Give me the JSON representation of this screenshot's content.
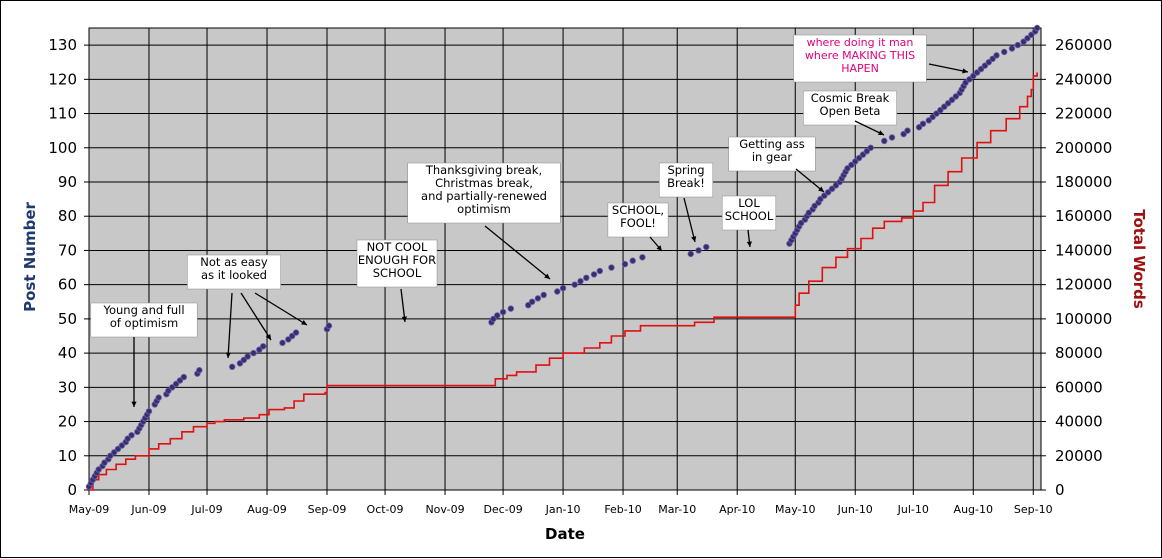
{
  "chart_data": {
    "type": "line",
    "xlabel": "Date",
    "ylabel_left": "Post Number",
    "ylabel_right": "Total Words",
    "xlim": [
      "2009-05-01",
      "2010-09-05"
    ],
    "ylim_left": [
      0,
      135
    ],
    "ylim_right": [
      0,
      270000
    ],
    "grid": true,
    "x_ticks": [
      "May-09",
      "Jun-09",
      "Jul-09",
      "Aug-09",
      "Sep-09",
      "Oct-09",
      "Nov-09",
      "Dec-09",
      "Jan-10",
      "Feb-10",
      "Mar-10",
      "Apr-10",
      "May-10",
      "Jun-10",
      "Jul-10",
      "Aug-10",
      "Sep-10"
    ],
    "y_ticks_left": [
      0,
      10,
      20,
      30,
      40,
      50,
      60,
      70,
      80,
      90,
      100,
      110,
      120,
      130
    ],
    "y_ticks_right": [
      0,
      20000,
      40000,
      60000,
      80000,
      100000,
      120000,
      140000,
      160000,
      180000,
      200000,
      220000,
      240000,
      260000
    ],
    "colors": {
      "posts": "#3a2d6e",
      "words": "#e01010",
      "plot_bg": "#c8c8c8",
      "grid": "#000000",
      "left_title": "#1f3a6e",
      "right_title": "#a01010",
      "pink": "#e0007a"
    },
    "series": [
      {
        "name": "Post Number",
        "style": "dots",
        "axis": "left",
        "points": [
          [
            "2009-05-01",
            1
          ],
          [
            "2009-05-02",
            2
          ],
          [
            "2009-05-03",
            3
          ],
          [
            "2009-05-04",
            4
          ],
          [
            "2009-05-05",
            5
          ],
          [
            "2009-05-06",
            6
          ],
          [
            "2009-05-08",
            7
          ],
          [
            "2009-05-09",
            8
          ],
          [
            "2009-05-11",
            9
          ],
          [
            "2009-05-12",
            10
          ],
          [
            "2009-05-14",
            11
          ],
          [
            "2009-05-16",
            12
          ],
          [
            "2009-05-18",
            13
          ],
          [
            "2009-05-20",
            14
          ],
          [
            "2009-05-21",
            15
          ],
          [
            "2009-05-23",
            16
          ],
          [
            "2009-05-26",
            17
          ],
          [
            "2009-05-27",
            18
          ],
          [
            "2009-05-28",
            19
          ],
          [
            "2009-05-29",
            20
          ],
          [
            "2009-05-30",
            21
          ],
          [
            "2009-05-31",
            22
          ],
          [
            "2009-06-01",
            23
          ],
          [
            "2009-06-04",
            25
          ],
          [
            "2009-06-05",
            26
          ],
          [
            "2009-06-06",
            27
          ],
          [
            "2009-06-10",
            28
          ],
          [
            "2009-06-11",
            29
          ],
          [
            "2009-06-13",
            30
          ],
          [
            "2009-06-15",
            31
          ],
          [
            "2009-06-17",
            32
          ],
          [
            "2009-06-19",
            33
          ],
          [
            "2009-06-26",
            34
          ],
          [
            "2009-06-27",
            35
          ],
          [
            "2009-07-14",
            36
          ],
          [
            "2009-07-18",
            37
          ],
          [
            "2009-07-20",
            38
          ],
          [
            "2009-07-22",
            39
          ],
          [
            "2009-07-25",
            40
          ],
          [
            "2009-07-28",
            41
          ],
          [
            "2009-07-30",
            42
          ],
          [
            "2009-08-09",
            43
          ],
          [
            "2009-08-12",
            44
          ],
          [
            "2009-08-14",
            45
          ],
          [
            "2009-08-16",
            46
          ],
          [
            "2009-09-01",
            47
          ],
          [
            "2009-09-02",
            48
          ],
          [
            "2009-11-25",
            49
          ],
          [
            "2009-11-26",
            50
          ],
          [
            "2009-11-28",
            51
          ],
          [
            "2009-12-01",
            52
          ],
          [
            "2009-12-05",
            53
          ],
          [
            "2009-12-14",
            54
          ],
          [
            "2009-12-16",
            55
          ],
          [
            "2009-12-19",
            56
          ],
          [
            "2009-12-22",
            57
          ],
          [
            "2009-12-29",
            58
          ],
          [
            "2010-01-01",
            59
          ],
          [
            "2010-01-07",
            60
          ],
          [
            "2010-01-10",
            61
          ],
          [
            "2010-01-13",
            62
          ],
          [
            "2010-01-17",
            63
          ],
          [
            "2010-01-20",
            64
          ],
          [
            "2010-01-26",
            65
          ],
          [
            "2010-02-02",
            66
          ],
          [
            "2010-02-06",
            67
          ],
          [
            "2010-02-11",
            68
          ],
          [
            "2010-03-08",
            69
          ],
          [
            "2010-03-12",
            70
          ],
          [
            "2010-03-16",
            71
          ],
          [
            "2010-04-28",
            72
          ],
          [
            "2010-04-29",
            73
          ],
          [
            "2010-04-30",
            74
          ],
          [
            "2010-05-01",
            75
          ],
          [
            "2010-05-02",
            76
          ],
          [
            "2010-05-03",
            77
          ],
          [
            "2010-05-04",
            78
          ],
          [
            "2010-05-06",
            79
          ],
          [
            "2010-05-07",
            80
          ],
          [
            "2010-05-08",
            81
          ],
          [
            "2010-05-10",
            82
          ],
          [
            "2010-05-11",
            83
          ],
          [
            "2010-05-13",
            84
          ],
          [
            "2010-05-14",
            85
          ],
          [
            "2010-05-16",
            86
          ],
          [
            "2010-05-18",
            87
          ],
          [
            "2010-05-20",
            88
          ],
          [
            "2010-05-22",
            89
          ],
          [
            "2010-05-24",
            90
          ],
          [
            "2010-05-25",
            91
          ],
          [
            "2010-05-26",
            92
          ],
          [
            "2010-05-27",
            93
          ],
          [
            "2010-05-28",
            94
          ],
          [
            "2010-05-30",
            95
          ],
          [
            "2010-06-01",
            96
          ],
          [
            "2010-06-03",
            97
          ],
          [
            "2010-06-05",
            98
          ],
          [
            "2010-06-07",
            99
          ],
          [
            "2010-06-09",
            100
          ],
          [
            "2010-06-16",
            102
          ],
          [
            "2010-06-20",
            103
          ],
          [
            "2010-06-26",
            104
          ],
          [
            "2010-06-28",
            105
          ],
          [
            "2010-07-04",
            106
          ],
          [
            "2010-07-06",
            107
          ],
          [
            "2010-07-09",
            108
          ],
          [
            "2010-07-11",
            109
          ],
          [
            "2010-07-13",
            110
          ],
          [
            "2010-07-15",
            111
          ],
          [
            "2010-07-17",
            112
          ],
          [
            "2010-07-19",
            113
          ],
          [
            "2010-07-21",
            114
          ],
          [
            "2010-07-23",
            115
          ],
          [
            "2010-07-25",
            116
          ],
          [
            "2010-07-26",
            117
          ],
          [
            "2010-07-27",
            118
          ],
          [
            "2010-07-28",
            119
          ],
          [
            "2010-07-30",
            120
          ],
          [
            "2010-08-01",
            121
          ],
          [
            "2010-08-03",
            122
          ],
          [
            "2010-08-05",
            123
          ],
          [
            "2010-08-07",
            124
          ],
          [
            "2010-08-09",
            125
          ],
          [
            "2010-08-11",
            126
          ],
          [
            "2010-08-13",
            127
          ],
          [
            "2010-08-17",
            128
          ],
          [
            "2010-08-21",
            129
          ],
          [
            "2010-08-24",
            130
          ],
          [
            "2010-08-27",
            131
          ],
          [
            "2010-08-29",
            132
          ],
          [
            "2010-08-31",
            133
          ],
          [
            "2010-09-02",
            134
          ],
          [
            "2010-09-03",
            135
          ]
        ]
      },
      {
        "name": "Total Words",
        "style": "line",
        "axis": "right",
        "points": [
          [
            "2009-05-01",
            0
          ],
          [
            "2009-05-03",
            6000
          ],
          [
            "2009-05-06",
            9000
          ],
          [
            "2009-05-10",
            12000
          ],
          [
            "2009-05-15",
            15000
          ],
          [
            "2009-05-20",
            18000
          ],
          [
            "2009-05-25",
            20000
          ],
          [
            "2009-06-01",
            24000
          ],
          [
            "2009-06-06",
            27000
          ],
          [
            "2009-06-12",
            30000
          ],
          [
            "2009-06-18",
            34000
          ],
          [
            "2009-06-24",
            37000
          ],
          [
            "2009-07-01",
            39000
          ],
          [
            "2009-07-05",
            40000
          ],
          [
            "2009-07-10",
            41000
          ],
          [
            "2009-07-20",
            42000
          ],
          [
            "2009-07-28",
            44000
          ],
          [
            "2009-08-02",
            47000
          ],
          [
            "2009-08-10",
            48000
          ],
          [
            "2009-08-15",
            52000
          ],
          [
            "2009-08-20",
            56000
          ],
          [
            "2009-08-31",
            57000
          ],
          [
            "2009-09-01",
            61000
          ],
          [
            "2009-11-24",
            61000
          ],
          [
            "2009-11-27",
            65000
          ],
          [
            "2009-12-03",
            67000
          ],
          [
            "2009-12-08",
            69000
          ],
          [
            "2009-12-18",
            73000
          ],
          [
            "2009-12-25",
            77000
          ],
          [
            "2010-01-01",
            80000
          ],
          [
            "2010-01-12",
            83000
          ],
          [
            "2010-01-20",
            86000
          ],
          [
            "2010-01-26",
            90000
          ],
          [
            "2010-02-02",
            93000
          ],
          [
            "2010-02-10",
            96000
          ],
          [
            "2010-02-25",
            96000
          ],
          [
            "2010-03-10",
            98000
          ],
          [
            "2010-03-20",
            101000
          ],
          [
            "2010-04-27",
            101000
          ],
          [
            "2010-05-01",
            108000
          ],
          [
            "2010-05-03",
            115000
          ],
          [
            "2010-05-08",
            122000
          ],
          [
            "2010-05-15",
            130000
          ],
          [
            "2010-05-22",
            136000
          ],
          [
            "2010-05-28",
            141000
          ],
          [
            "2010-06-04",
            147000
          ],
          [
            "2010-06-10",
            153000
          ],
          [
            "2010-06-16",
            157000
          ],
          [
            "2010-06-25",
            159000
          ],
          [
            "2010-07-01",
            163000
          ],
          [
            "2010-07-06",
            168000
          ],
          [
            "2010-07-12",
            178000
          ],
          [
            "2010-07-19",
            186000
          ],
          [
            "2010-07-26",
            194000
          ],
          [
            "2010-08-03",
            203000
          ],
          [
            "2010-08-10",
            210000
          ],
          [
            "2010-08-18",
            217000
          ],
          [
            "2010-08-25",
            224000
          ],
          [
            "2010-08-29",
            230000
          ],
          [
            "2010-08-31",
            234000
          ],
          [
            "2010-09-01",
            242000
          ],
          [
            "2010-09-03",
            244000
          ]
        ]
      }
    ],
    "annotations": [
      {
        "text": [
          "Young and full",
          "of optimism"
        ],
        "color": "black"
      },
      {
        "text": [
          "Not as easy",
          "as it looked"
        ],
        "color": "black"
      },
      {
        "text": [
          "NOT COOL",
          "ENOUGH FOR",
          "SCHOOL"
        ],
        "color": "black"
      },
      {
        "text": [
          "Thanksgiving break,",
          "Christmas break,",
          "and partially-renewed",
          "optimism"
        ],
        "color": "black"
      },
      {
        "text": [
          "SCHOOL,",
          "FOOL!"
        ],
        "color": "black"
      },
      {
        "text": [
          "Spring",
          "Break!"
        ],
        "color": "black"
      },
      {
        "text": [
          "LOL",
          "SCHOOL"
        ],
        "color": "black"
      },
      {
        "text": [
          "Getting ass",
          "in gear"
        ],
        "color": "black"
      },
      {
        "text": [
          "Cosmic Break",
          "Open Beta"
        ],
        "color": "black"
      },
      {
        "text": [
          "where doing it man",
          "where MAKING THIS",
          "HAPEN"
        ],
        "color": "pink"
      }
    ]
  }
}
